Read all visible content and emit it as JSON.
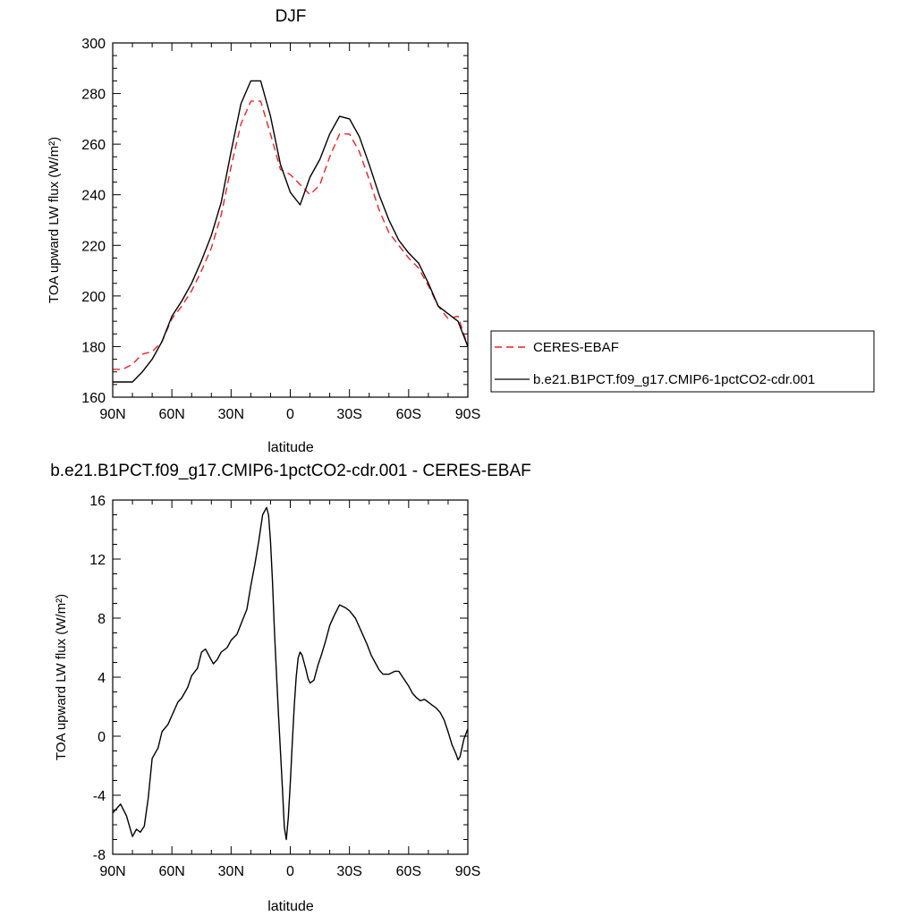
{
  "chart_data": [
    {
      "type": "line",
      "title": "DJF",
      "xlabel": "latitude",
      "ylabel": "TOA upward LW flux (W/m²)",
      "xlim": [
        90,
        -90
      ],
      "ylim": [
        160,
        300
      ],
      "xticks": [
        90,
        60,
        30,
        0,
        -30,
        -60,
        -90
      ],
      "xtick_labels": [
        "90N",
        "60N",
        "30N",
        "0",
        "30S",
        "60S",
        "90S"
      ],
      "yticks": [
        160,
        180,
        200,
        220,
        240,
        260,
        280,
        300
      ],
      "ytick_labels": [
        "160",
        "180",
        "200",
        "220",
        "240",
        "260",
        "280",
        "300"
      ],
      "legend": "right",
      "series": [
        {
          "name": "CERES-EBAF",
          "color": "#e8232a",
          "dash": "dashed",
          "x": [
            90,
            85,
            80,
            75,
            70,
            65,
            60,
            55,
            50,
            45,
            40,
            35,
            30,
            25,
            20,
            15,
            10,
            5,
            0,
            -5,
            -10,
            -15,
            -20,
            -25,
            -30,
            -35,
            -40,
            -45,
            -50,
            -55,
            -60,
            -65,
            -70,
            -75,
            -80,
            -85,
            -90
          ],
          "y": [
            171,
            171,
            173,
            177,
            178,
            182,
            191,
            196,
            202,
            210,
            219,
            232,
            251,
            268,
            277,
            277,
            264,
            250,
            248,
            244,
            240,
            244,
            255,
            264,
            264,
            257,
            246,
            234,
            225,
            220,
            215,
            211,
            204,
            196,
            191,
            192,
            180
          ]
        },
        {
          "name": "b.e21.B1PCT.f09_g17.CMIP6-1pctCO2-cdr.001",
          "color": "#000000",
          "dash": "solid",
          "x": [
            90,
            85,
            80,
            75,
            70,
            65,
            60,
            55,
            50,
            45,
            40,
            35,
            30,
            25,
            20,
            15,
            10,
            5,
            0,
            -5,
            -10,
            -15,
            -20,
            -25,
            -30,
            -35,
            -40,
            -45,
            -50,
            -55,
            -60,
            -65,
            -70,
            -75,
            -80,
            -85,
            -90
          ],
          "y": [
            166,
            166,
            166,
            170,
            175,
            182,
            192,
            198,
            205,
            214,
            224,
            237,
            257,
            276,
            285,
            285,
            271,
            252,
            241,
            236,
            247,
            254,
            264,
            271,
            270,
            263,
            252,
            240,
            230,
            222,
            217,
            213,
            205,
            196,
            193,
            190,
            180
          ]
        }
      ]
    },
    {
      "type": "line",
      "title": "b.e21.B1PCT.f09_g17.CMIP6-1pctCO2-cdr.001 - CERES-EBAF",
      "xlabel": "latitude",
      "ylabel": "TOA upward LW flux (W/m²)",
      "xlim": [
        90,
        -90
      ],
      "ylim": [
        -8,
        16
      ],
      "xticks": [
        90,
        60,
        30,
        0,
        -30,
        -60,
        -90
      ],
      "xtick_labels": [
        "90N",
        "60N",
        "30N",
        "0",
        "30S",
        "60S",
        "90S"
      ],
      "yticks": [
        -8,
        -4,
        0,
        4,
        8,
        12,
        16
      ],
      "ytick_labels": [
        "-8",
        "-4",
        "0",
        "4",
        "8",
        "12",
        "16"
      ],
      "series": [
        {
          "color": "#000000",
          "dash": "solid",
          "x": [
            90,
            86,
            83,
            80,
            78,
            76,
            74,
            72,
            70,
            67,
            65,
            62,
            60,
            57,
            55,
            52,
            50,
            47,
            45,
            43,
            41,
            39,
            37,
            35,
            32,
            30,
            27,
            25,
            22,
            20,
            18,
            16,
            14,
            12,
            11,
            10,
            9,
            8,
            7,
            6,
            5,
            4,
            3,
            2,
            1,
            0,
            -1,
            -2,
            -3,
            -4,
            -5,
            -6,
            -7,
            -8,
            -9,
            -10,
            -12,
            -14,
            -16,
            -18,
            -20,
            -22,
            -25,
            -28,
            -30,
            -33,
            -35,
            -37,
            -39,
            -41,
            -43,
            -45,
            -47,
            -50,
            -53,
            -55,
            -57,
            -60,
            -62,
            -64,
            -66,
            -68,
            -70,
            -72,
            -74,
            -76,
            -78,
            -80,
            -82,
            -84,
            -85,
            -86,
            -88,
            -90
          ],
          "y": [
            -5.2,
            -4.6,
            -5.4,
            -6.8,
            -6.3,
            -6.5,
            -6.1,
            -4.2,
            -1.5,
            -0.8,
            0.3,
            0.8,
            1.4,
            2.3,
            2.6,
            3.3,
            4.1,
            4.6,
            5.7,
            5.9,
            5.4,
            4.9,
            5.2,
            5.7,
            6.0,
            6.5,
            6.9,
            7.6,
            8.6,
            10.2,
            11.6,
            13.2,
            15.0,
            15.5,
            15.0,
            13.2,
            10.5,
            7.0,
            4.2,
            1.5,
            -1.0,
            -3.5,
            -6.2,
            -7.0,
            -5.5,
            -3.2,
            -0.5,
            2.0,
            4.0,
            5.3,
            5.7,
            5.5,
            5.0,
            4.5,
            3.9,
            3.6,
            3.8,
            4.8,
            5.6,
            6.5,
            7.5,
            8.1,
            8.9,
            8.7,
            8.5,
            8.0,
            7.4,
            6.8,
            6.2,
            5.5,
            5.0,
            4.5,
            4.2,
            4.2,
            4.4,
            4.4,
            4.0,
            3.4,
            2.9,
            2.6,
            2.4,
            2.5,
            2.3,
            2.1,
            1.9,
            1.6,
            1.1,
            0.3,
            -0.6,
            -1.2,
            -1.6,
            -1.4,
            -0.2,
            0.5
          ]
        }
      ]
    }
  ]
}
